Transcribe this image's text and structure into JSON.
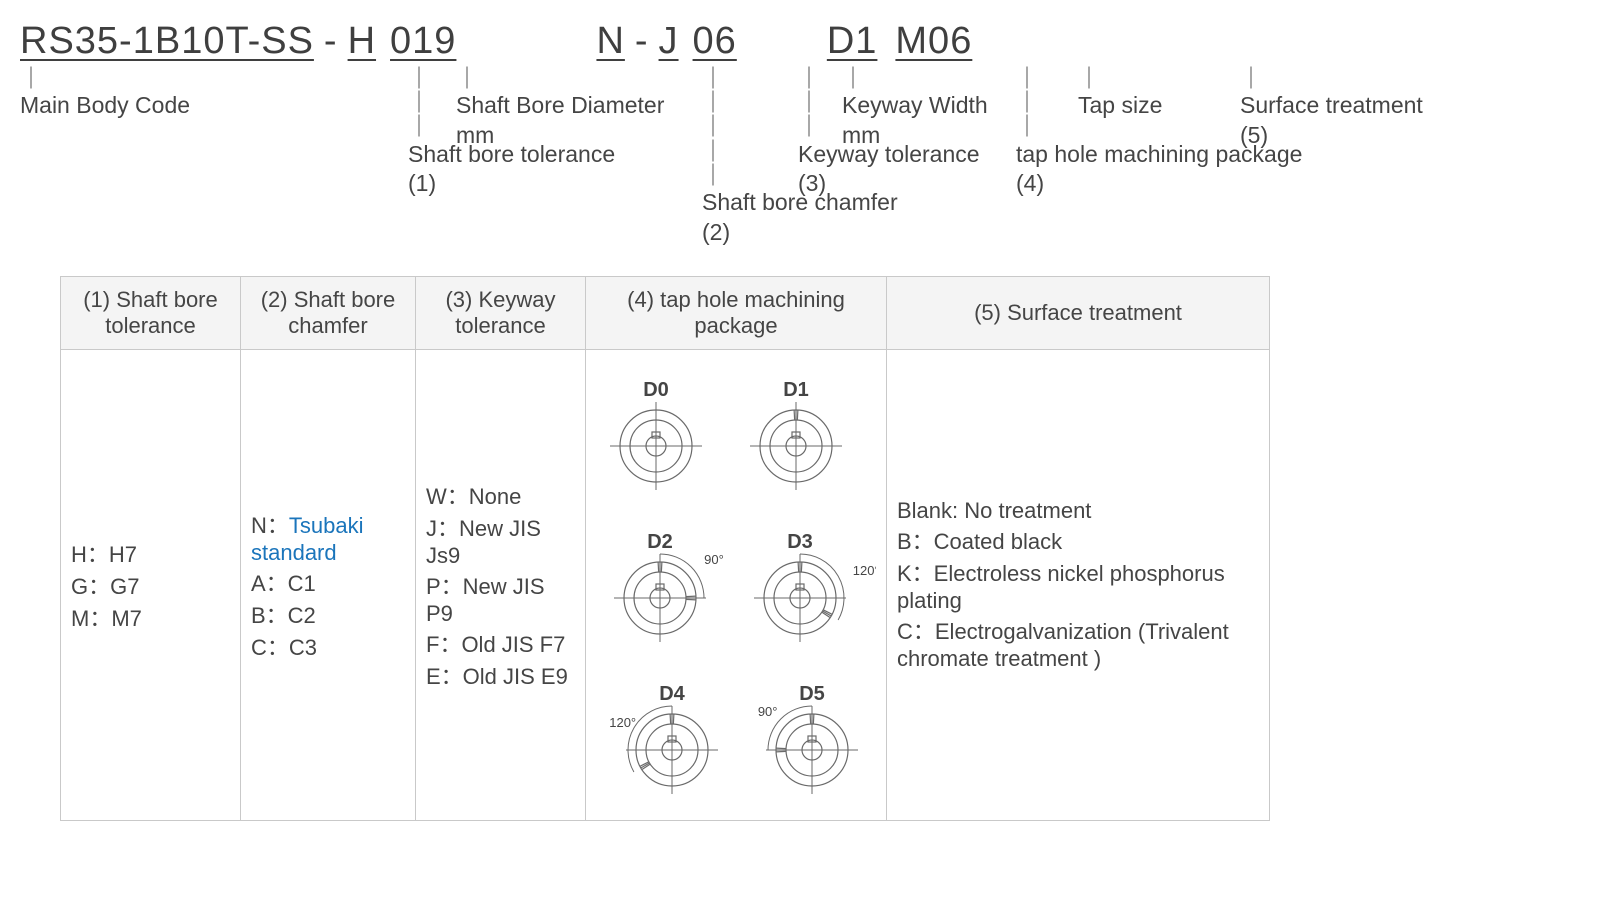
{
  "code": {
    "main": "RS35-1B10T-SS",
    "tol": "H",
    "dia": "019",
    "chamf": "N",
    "ktol": "J",
    "kw": "06",
    "tap": "D1",
    "tapsz": "M06"
  },
  "annot": {
    "main": "Main Body Code",
    "tol": "Shaft bore tolerance\n(1)",
    "dia": "Shaft Bore Diameter\nmm",
    "chamf": "Shaft bore chamfer\n(2)",
    "ktol": "Keyway tolerance\n(3)",
    "kw": "Keyway Width\nmm",
    "tap": "tap hole machining package\n(4)",
    "tapsz": "Tap size",
    "surf": "Surface treatment\n(5)"
  },
  "table": {
    "headers": [
      "(1) Shaft bore tolerance",
      "(2) Shaft bore chamfer",
      "(3) Keyway tolerance",
      "(4) tap hole machining package",
      "(5) Surface treatment"
    ],
    "col1": [
      "H：H7",
      "G：G7",
      "M：M7"
    ],
    "col2_prefix": "N：",
    "col2_link": "Tsubaki standard",
    "col2_rest": [
      "A：C1",
      "B：C2",
      "C：C3"
    ],
    "col3": [
      "W：None",
      "J：New JIS Js9",
      "P：New JIS P9",
      "F：Old JIS F7",
      "E：Old JIS E9"
    ],
    "col4": {
      "labels": [
        "D0",
        "D1",
        "D2",
        "D3",
        "D4",
        "D5"
      ],
      "angles": {
        "d2": "90°",
        "d3": "120°",
        "d4": "120°",
        "d5": "90°"
      }
    },
    "col5": [
      "Blank: No treatment",
      "B：Coated black",
      "K：Electroless nickel phosphorus plating",
      "C：Electrogalvanization (Trivalent chromate treatment )"
    ]
  },
  "style": {
    "text_color": "#454545",
    "link_color": "#1b75bb",
    "header_bg": "#f4f4f4",
    "border": "#c9c9c9",
    "diagram_stroke": "#6a6a6a"
  }
}
